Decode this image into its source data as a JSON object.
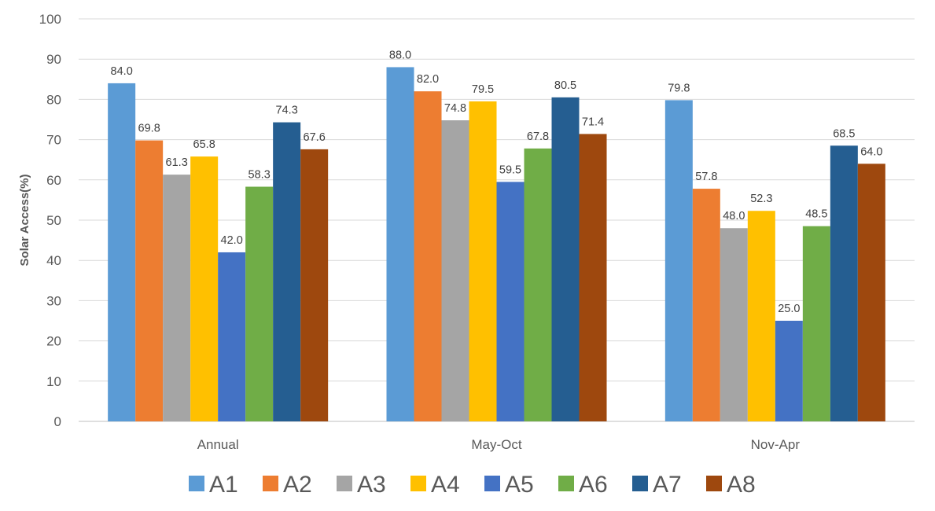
{
  "chart_data": {
    "type": "bar",
    "title": "",
    "xlabel": "",
    "ylabel": "Solar Access(%)",
    "ylim": [
      0,
      100
    ],
    "yticks": [
      0,
      10,
      20,
      30,
      40,
      50,
      60,
      70,
      80,
      90,
      100
    ],
    "grid": true,
    "legend_position": "bottom",
    "categories": [
      "Annual",
      "May-Oct",
      "Nov-Apr"
    ],
    "series": [
      {
        "name": "A1",
        "color": "#5b9bd5",
        "values": [
          84.0,
          88.0,
          79.8
        ],
        "labels": [
          "84.0",
          "88.0",
          "79.8"
        ]
      },
      {
        "name": "A2",
        "color": "#ed7d31",
        "values": [
          69.8,
          82.0,
          57.8
        ],
        "labels": [
          "69.8",
          "82.0",
          "57.8"
        ]
      },
      {
        "name": "A3",
        "color": "#a5a5a5",
        "values": [
          61.3,
          74.8,
          48.0
        ],
        "labels": [
          "61.3",
          "74.8",
          "48.0"
        ]
      },
      {
        "name": "A4",
        "color": "#ffc000",
        "values": [
          65.8,
          79.5,
          52.3
        ],
        "labels": [
          "65.8",
          "79.5",
          "52.3"
        ]
      },
      {
        "name": "A5",
        "color": "#4472c4",
        "values": [
          42.0,
          59.5,
          25.0
        ],
        "labels": [
          "42.0",
          "59.5",
          "25.0"
        ]
      },
      {
        "name": "A6",
        "color": "#70ad47",
        "values": [
          58.3,
          67.8,
          48.5
        ],
        "labels": [
          "58.3",
          "67.8",
          "48.5"
        ]
      },
      {
        "name": "A7",
        "color": "#255e91",
        "values": [
          74.3,
          80.5,
          68.5
        ],
        "labels": [
          "74.3",
          "80.5",
          "68.5"
        ]
      },
      {
        "name": "A8",
        "color": "#9e480e",
        "values": [
          67.6,
          71.4,
          64.0
        ],
        "labels": [
          "67.6",
          "71.4",
          "64.0"
        ]
      }
    ]
  }
}
